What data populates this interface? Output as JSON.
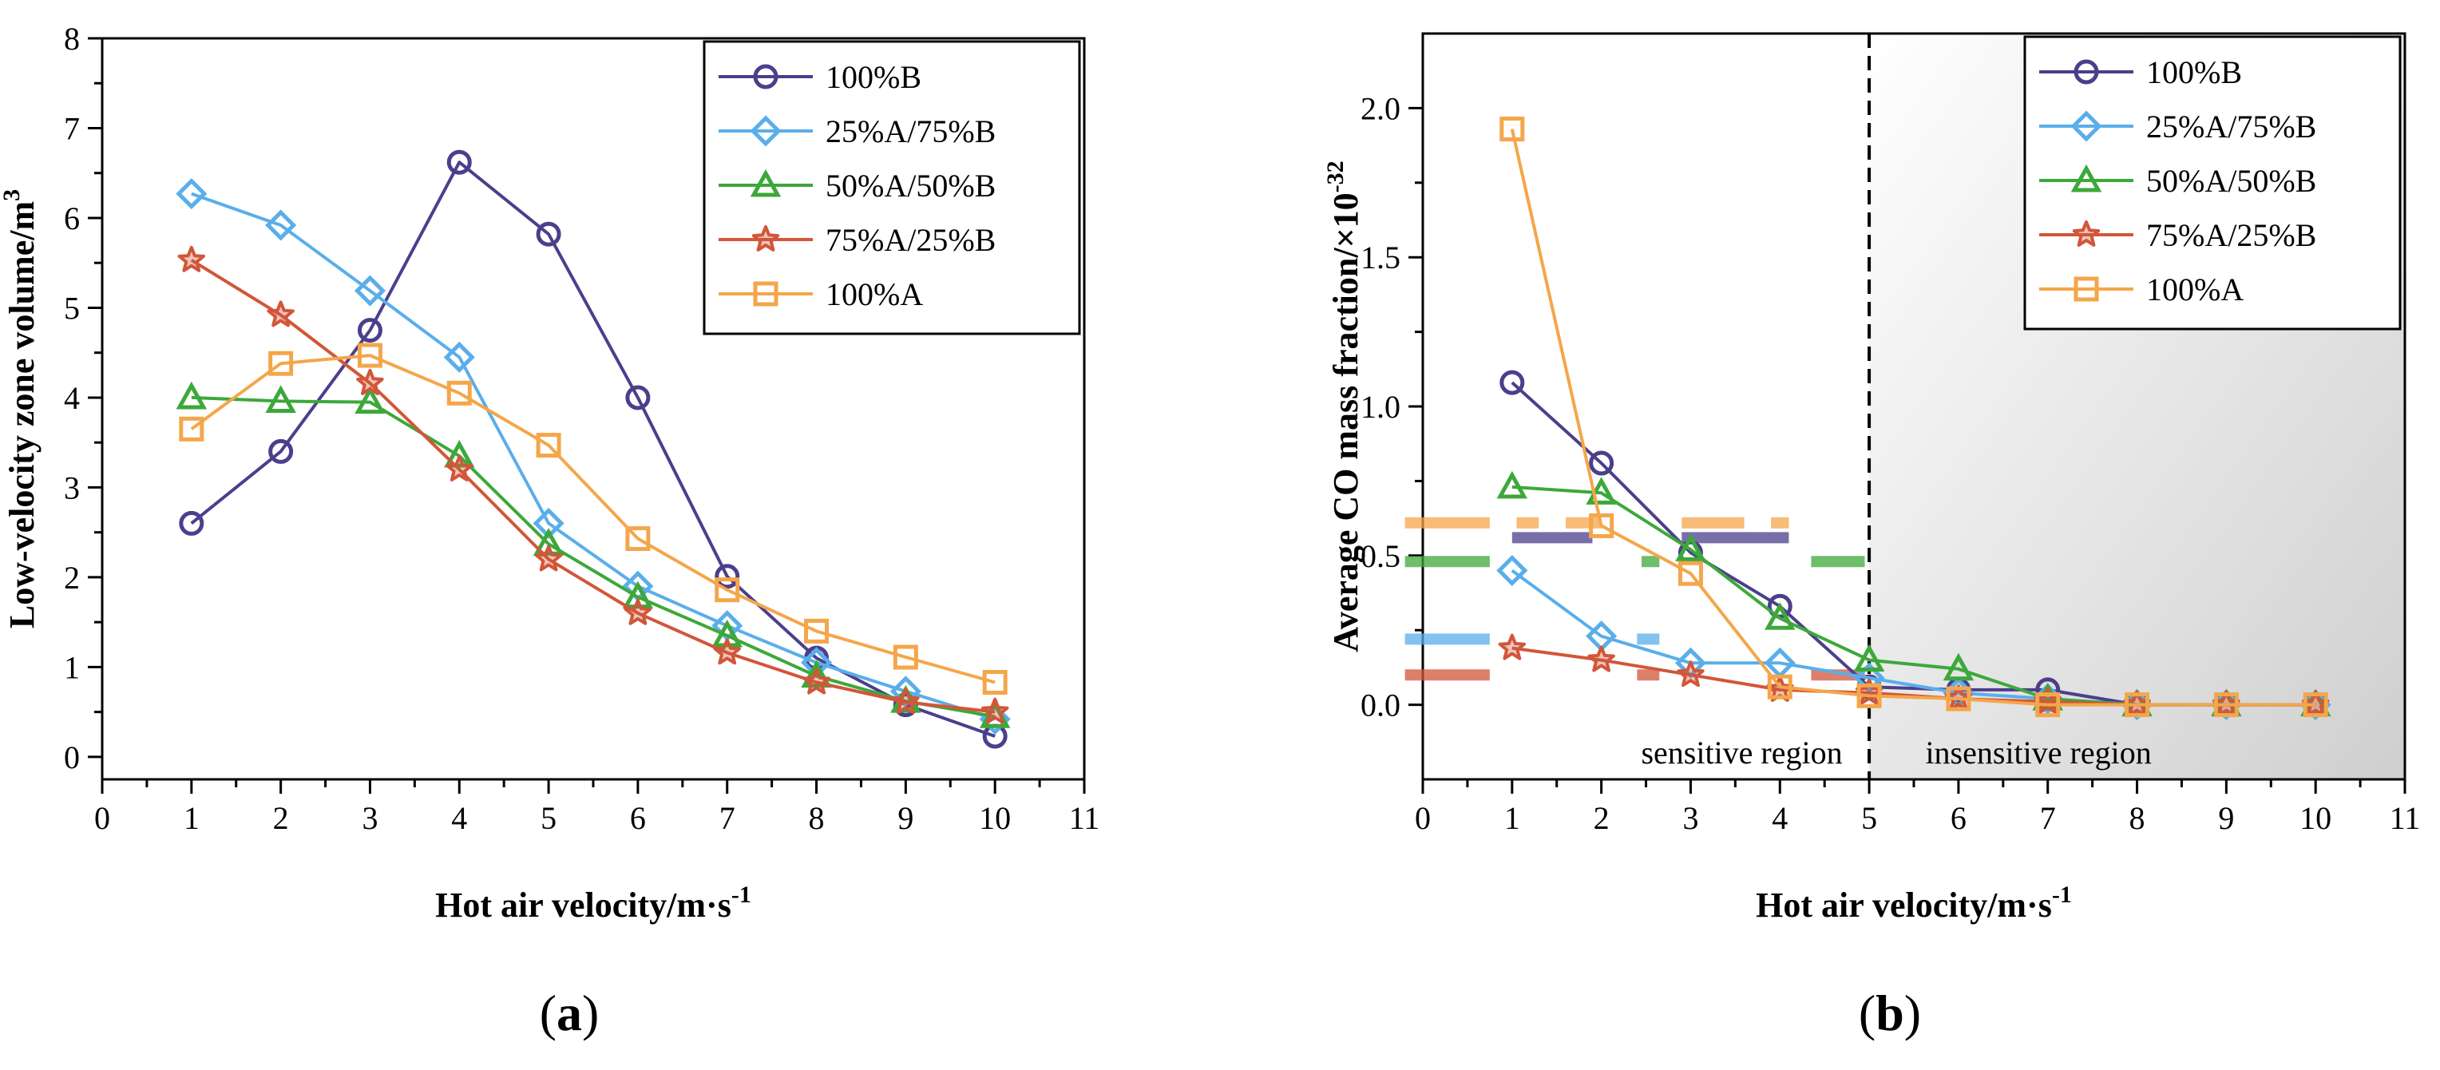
{
  "chart_data": [
    {
      "type": "line",
      "panel_label": "a",
      "title": "",
      "xlabel": "Hot air velocity/m·s",
      "xlabel_sup": "-1",
      "ylabel": "Low-velocity zone volume/m",
      "ylabel_sup": "3",
      "xlim": [
        0,
        11
      ],
      "ylim": [
        -0.25,
        8
      ],
      "xticks": [
        0,
        1,
        2,
        3,
        4,
        5,
        6,
        7,
        8,
        9,
        10,
        11
      ],
      "yticks": [
        0,
        1,
        2,
        3,
        4,
        5,
        6,
        7,
        8
      ],
      "legend_position": "top-right",
      "series": [
        {
          "name": "100%B",
          "color": "#4b3f8c",
          "marker": "circle",
          "x": [
            1,
            2,
            3,
            4,
            5,
            6,
            7,
            8,
            9,
            10
          ],
          "y": [
            2.6,
            3.4,
            4.75,
            6.62,
            5.82,
            4.0,
            2.01,
            1.1,
            0.58,
            0.23
          ]
        },
        {
          "name": "25%A/75%B",
          "color": "#5aaeea",
          "marker": "diamond",
          "x": [
            1,
            2,
            3,
            4,
            5,
            6,
            7,
            8,
            9,
            10
          ],
          "y": [
            6.27,
            5.92,
            5.19,
            4.45,
            2.6,
            1.9,
            1.46,
            1.05,
            0.73,
            0.42
          ]
        },
        {
          "name": "50%A/50%B",
          "color": "#3da83a",
          "marker": "triangle",
          "x": [
            1,
            2,
            3,
            4,
            5,
            6,
            7,
            8,
            9,
            10
          ],
          "y": [
            4.0,
            3.96,
            3.95,
            3.35,
            2.37,
            1.78,
            1.35,
            0.9,
            0.62,
            0.45
          ]
        },
        {
          "name": "75%A/25%B",
          "color": "#d2563a",
          "marker": "star",
          "x": [
            1,
            2,
            3,
            4,
            5,
            6,
            7,
            8,
            9,
            10
          ],
          "y": [
            5.53,
            4.92,
            4.16,
            3.2,
            2.2,
            1.6,
            1.16,
            0.83,
            0.61,
            0.5
          ]
        },
        {
          "name": "100%A",
          "color": "#f4a64a",
          "marker": "square",
          "x": [
            1,
            2,
            3,
            4,
            5,
            6,
            7,
            8,
            9,
            10
          ],
          "y": [
            3.65,
            4.38,
            4.47,
            4.05,
            3.47,
            2.43,
            1.86,
            1.4,
            1.11,
            0.83
          ]
        }
      ]
    },
    {
      "type": "line",
      "panel_label": "b",
      "title": "",
      "xlabel": "Hot air velocity/m·s",
      "xlabel_sup": "-1",
      "ylabel": "Average CO mass fraction/×10",
      "ylabel_sup": "-32",
      "xlim": [
        0,
        11
      ],
      "ylim": [
        -0.25,
        2.25
      ],
      "xticks": [
        0,
        1,
        2,
        3,
        4,
        5,
        6,
        7,
        8,
        9,
        10,
        11
      ],
      "yticks": [
        "0.0",
        "0.5",
        "1.0",
        "1.5",
        "2.0"
      ],
      "legend_position": "top-right",
      "divider_x": 5,
      "regions": [
        {
          "label": "sensitive region",
          "x_range": [
            0,
            5
          ]
        },
        {
          "label": "insensitive region",
          "x_range": [
            5,
            11
          ]
        }
      ],
      "series": [
        {
          "name": "100%B",
          "color": "#4b3f8c",
          "marker": "circle",
          "x": [
            1,
            2,
            3,
            4,
            5,
            6,
            7,
            8,
            9,
            10
          ],
          "y": [
            1.08,
            0.81,
            0.51,
            0.33,
            0.06,
            0.05,
            0.05,
            0.0,
            0.0,
            0.0
          ],
          "mean": 0.56,
          "mean_segments": [
            [
              1,
              1.9
            ],
            [
              2.9,
              4.1
            ]
          ]
        },
        {
          "name": "25%A/75%B",
          "color": "#5aaeea",
          "marker": "diamond",
          "x": [
            1,
            2,
            3,
            4,
            5,
            6,
            7,
            8,
            9,
            10
          ],
          "y": [
            0.45,
            0.23,
            0.14,
            0.14,
            0.09,
            0.04,
            0.02,
            0.0,
            0.0,
            0.0
          ],
          "mean": 0.22,
          "mean_segments": [
            [
              -0.2,
              0.75
            ],
            [
              2.4,
              2.65
            ]
          ]
        },
        {
          "name": "50%A/50%B",
          "color": "#3da83a",
          "marker": "triangle",
          "x": [
            1,
            2,
            3,
            4,
            5,
            6,
            7,
            8,
            9,
            10
          ],
          "y": [
            0.73,
            0.71,
            0.52,
            0.29,
            0.15,
            0.12,
            0.02,
            0.0,
            0.0,
            0.0
          ],
          "mean": 0.48,
          "mean_segments": [
            [
              -0.2,
              0.75
            ],
            [
              2.45,
              2.65
            ],
            [
              4.35,
              4.95
            ]
          ]
        },
        {
          "name": "75%A/25%B",
          "color": "#d2563a",
          "marker": "star",
          "x": [
            1,
            2,
            3,
            4,
            5,
            6,
            7,
            8,
            9,
            10
          ],
          "y": [
            0.19,
            0.15,
            0.1,
            0.05,
            0.04,
            0.02,
            0.01,
            0.0,
            0.0,
            0.0
          ],
          "mean": 0.1,
          "mean_segments": [
            [
              -0.2,
              0.75
            ],
            [
              2.4,
              2.65
            ],
            [
              4.35,
              4.95
            ]
          ]
        },
        {
          "name": "100%A",
          "color": "#f4a64a",
          "marker": "square",
          "x": [
            1,
            2,
            3,
            4,
            5,
            6,
            7,
            8,
            9,
            10
          ],
          "y": [
            1.93,
            0.6,
            0.44,
            0.06,
            0.03,
            0.02,
            0.0,
            0.0,
            0.0,
            0.0
          ],
          "mean": 0.61,
          "mean_segments": [
            [
              -0.2,
              0.75
            ],
            [
              1.05,
              1.3
            ],
            [
              1.6,
              2.0
            ],
            [
              2.9,
              3.6
            ],
            [
              3.9,
              4.1
            ]
          ]
        }
      ]
    }
  ]
}
